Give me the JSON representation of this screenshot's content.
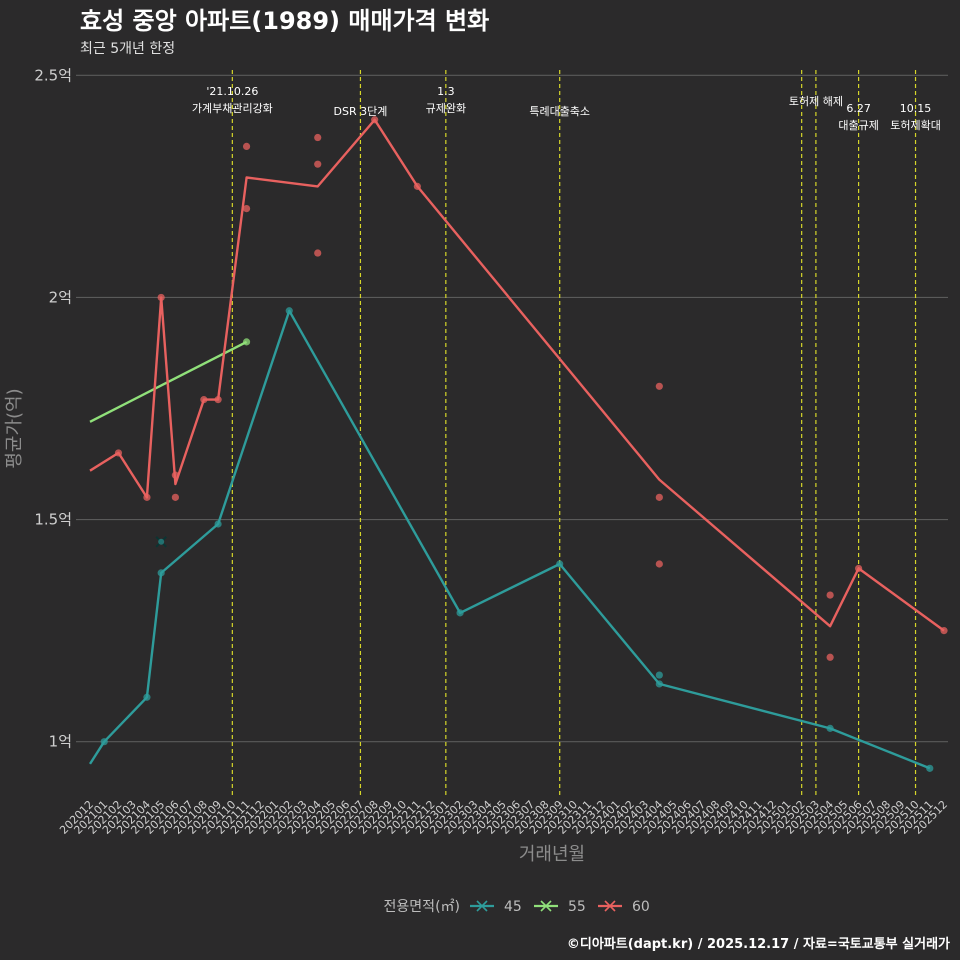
{
  "header": {
    "title": "효성 중앙 아파트(1989) 매매가격 변화",
    "subtitle": "최근 5개년 한정"
  },
  "caption": "©디아파트(dapt.kr) / 2025.12.17 / 자료=국토교통부 실거래가",
  "chart_data": {
    "type": "line",
    "xlabel": "거래년월",
    "ylabel": "평균가(억)",
    "ylim": [
      0.88,
      2.53
    ],
    "y_ticks": [
      {
        "value": 1.0,
        "label": "1억"
      },
      {
        "value": 1.5,
        "label": "1.5억"
      },
      {
        "value": 2.0,
        "label": "2억"
      },
      {
        "value": 2.5,
        "label": "2.5억"
      }
    ],
    "categories": [
      "202012",
      "202101",
      "202102",
      "202103",
      "202104",
      "202105",
      "202106",
      "202107",
      "202108",
      "202109",
      "202110",
      "202111",
      "202112",
      "202201",
      "202202",
      "202203",
      "202204",
      "202205",
      "202206",
      "202207",
      "202208",
      "202209",
      "202210",
      "202211",
      "202212",
      "202301",
      "202302",
      "202303",
      "202304",
      "202305",
      "202306",
      "202307",
      "202308",
      "202309",
      "202310",
      "202311",
      "202312",
      "202401",
      "202402",
      "202403",
      "202404",
      "202405",
      "202406",
      "202407",
      "202408",
      "202409",
      "202410",
      "202411",
      "202412",
      "202501",
      "202502",
      "202503",
      "202504",
      "202505",
      "202506",
      "202507",
      "202508",
      "202509",
      "202510",
      "202511",
      "202512"
    ],
    "legend": {
      "title": "전용면적(㎡)",
      "position": "bottom"
    },
    "series": [
      {
        "name": "45",
        "color": "#2e9c9b",
        "line": [
          [
            "202012",
            0.95
          ],
          [
            "202101",
            1.0
          ],
          [
            "202104",
            1.1
          ],
          [
            "202105",
            1.38
          ],
          [
            "202109",
            1.49
          ],
          [
            "202202",
            1.97
          ],
          [
            "202302",
            1.29
          ],
          [
            "202309",
            1.4
          ],
          [
            "202404",
            1.13
          ],
          [
            "202504",
            1.03
          ],
          [
            "202511",
            0.94
          ]
        ],
        "points": [
          [
            "202101",
            1.0
          ],
          [
            "202104",
            1.1
          ],
          [
            "202105",
            1.38
          ],
          [
            "202109",
            1.49
          ],
          [
            "202202",
            1.97
          ],
          [
            "202302",
            1.29
          ],
          [
            "202309",
            1.4
          ],
          [
            "202404",
            1.15
          ],
          [
            "202404",
            1.13
          ],
          [
            "202504",
            1.03
          ],
          [
            "202511",
            0.94
          ]
        ],
        "cross_points": [
          [
            "202105",
            1.45
          ]
        ]
      },
      {
        "name": "55",
        "color": "#90e07a",
        "line": [
          [
            "202012",
            1.72
          ],
          [
            "202111",
            1.9
          ]
        ],
        "points": [
          [
            "202111",
            1.9
          ]
        ],
        "cross_points": []
      },
      {
        "name": "60",
        "color": "#e8615f",
        "line": [
          [
            "202012",
            1.61
          ],
          [
            "202102",
            1.65
          ],
          [
            "202104",
            1.55
          ],
          [
            "202105",
            2.0
          ],
          [
            "202106",
            1.58
          ],
          [
            "202108",
            1.77
          ],
          [
            "202109",
            1.77
          ],
          [
            "202111",
            2.27
          ],
          [
            "202204",
            2.25
          ],
          [
            "202208",
            2.4
          ],
          [
            "202211",
            2.25
          ],
          [
            "202404",
            1.59
          ],
          [
            "202504",
            1.26
          ],
          [
            "202506",
            1.39
          ],
          [
            "202512",
            1.25
          ]
        ],
        "points": [
          [
            "202102",
            1.65
          ],
          [
            "202104",
            1.55
          ],
          [
            "202105",
            2.0
          ],
          [
            "202106",
            1.6
          ],
          [
            "202106",
            1.55
          ],
          [
            "202108",
            1.77
          ],
          [
            "202109",
            1.77
          ],
          [
            "202111",
            2.34
          ],
          [
            "202111",
            2.2
          ],
          [
            "202204",
            2.36
          ],
          [
            "202204",
            2.3
          ],
          [
            "202204",
            2.1
          ],
          [
            "202208",
            2.4
          ],
          [
            "202211",
            2.25
          ],
          [
            "202404",
            1.8
          ],
          [
            "202404",
            1.55
          ],
          [
            "202404",
            1.4
          ],
          [
            "202504",
            1.33
          ],
          [
            "202504",
            1.19
          ],
          [
            "202506",
            1.39
          ],
          [
            "202512",
            1.25
          ]
        ],
        "cross_points": []
      }
    ],
    "events": [
      {
        "x": 10.0,
        "lines": [
          "'21.10.26",
          "가계부채관리강화"
        ],
        "row": 0
      },
      {
        "x": 19.0,
        "lines": [
          "DSR 3단계"
        ],
        "row": 2
      },
      {
        "x": 25.0,
        "lines": [
          "1.3",
          "규제완화"
        ],
        "row": 0
      },
      {
        "x": 33.0,
        "lines": [
          "특례대출축소"
        ],
        "row": 2
      },
      {
        "x": 50.0,
        "lines": [],
        "row": 1
      },
      {
        "x": 51.0,
        "lines": [
          "토허제 해제"
        ],
        "row": 1
      },
      {
        "x": 54.0,
        "lines": [
          "6.27",
          "대출규제"
        ],
        "row": 1.7
      },
      {
        "x": 58.0,
        "lines": [
          "10.15",
          "토허제확대"
        ],
        "row": 1.7
      }
    ],
    "event_label_offsets": {
      "50": 0
    }
  }
}
